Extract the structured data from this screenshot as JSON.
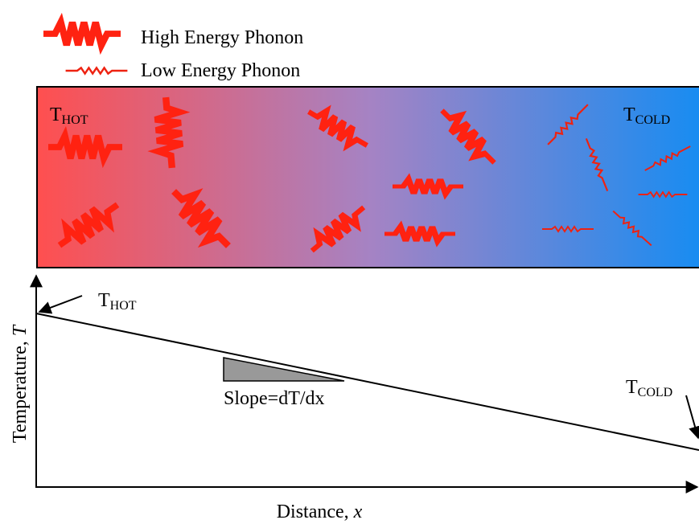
{
  "legend": [
    {
      "label": "High Energy Phonon"
    },
    {
      "label": "Low Energy Phonon"
    }
  ],
  "bar": {
    "hot": {
      "main": "T",
      "sub": "HOT"
    },
    "cold": {
      "main": "T",
      "sub": "COLD"
    }
  },
  "plot": {
    "hot": {
      "main": "T",
      "sub": "HOT"
    },
    "cold": {
      "main": "T",
      "sub": "COLD"
    },
    "slope": "Slope=dT/dx",
    "y_axis": {
      "text": "Temperature, ",
      "var": "T"
    },
    "x_axis": {
      "text": "Distance, ",
      "var": "x"
    }
  }
}
